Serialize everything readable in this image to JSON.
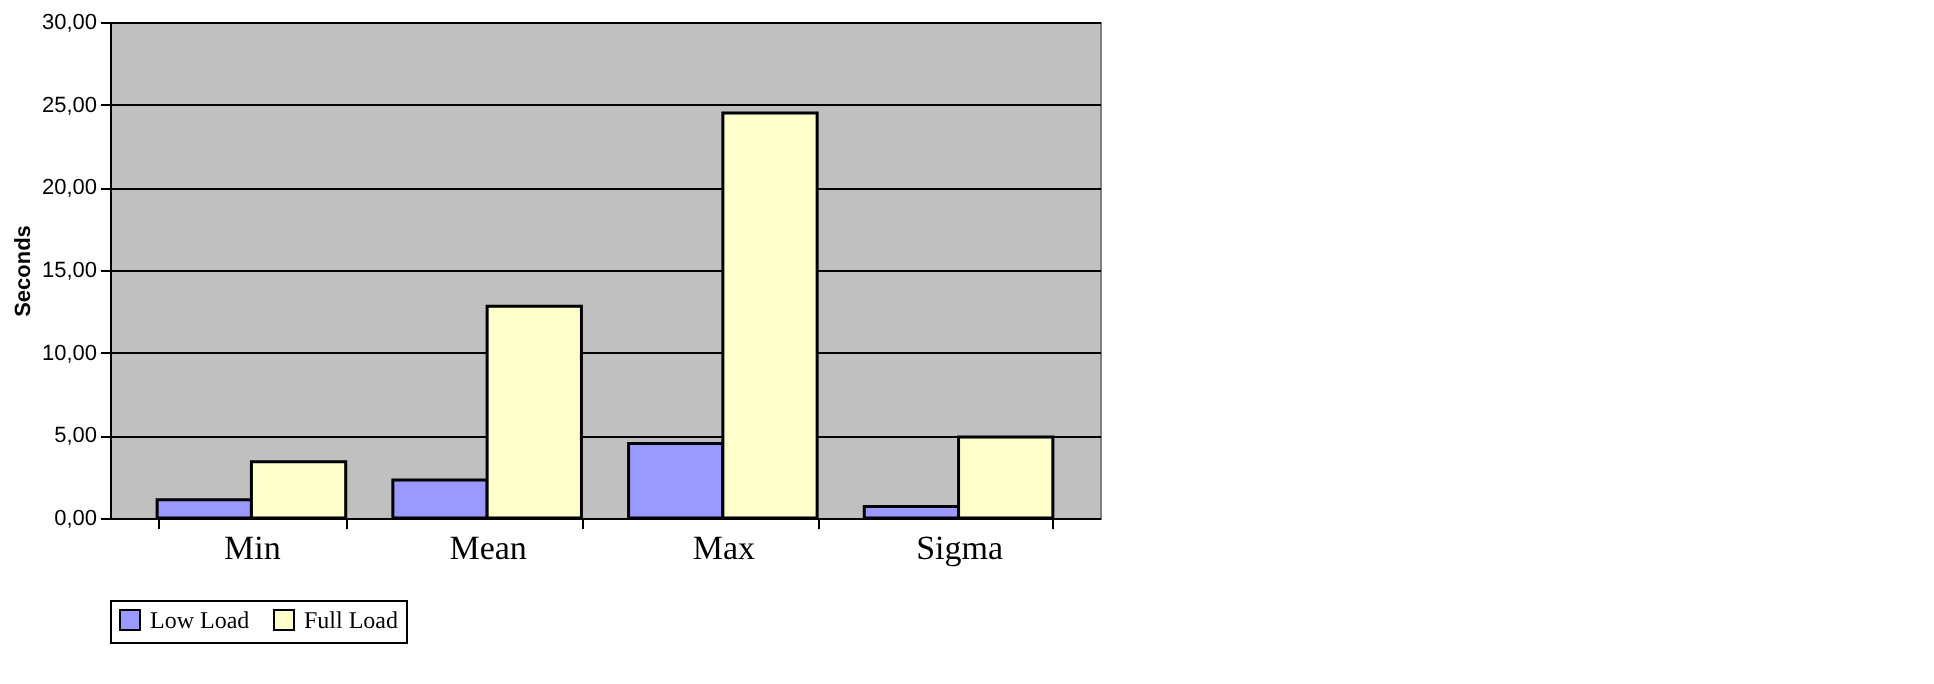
{
  "chart_data": {
    "type": "bar",
    "ylabel": "Seconds",
    "categories": [
      "Min",
      "Mean",
      "Max",
      "Sigma"
    ],
    "series": [
      {
        "name": "Low Load",
        "color": "#9999ff",
        "values": [
          1.1,
          2.3,
          4.5,
          0.7
        ]
      },
      {
        "name": "Full Load",
        "color": "#ffffcc",
        "values": [
          3.4,
          12.8,
          24.5,
          4.9
        ]
      }
    ],
    "ylim": [
      0,
      30
    ],
    "yticks": [
      {
        "value": 0,
        "label": "0,00"
      },
      {
        "value": 5,
        "label": "5,00"
      },
      {
        "value": 10,
        "label": "10,00"
      },
      {
        "value": 15,
        "label": "15,00"
      },
      {
        "value": 20,
        "label": "20,00"
      },
      {
        "value": 25,
        "label": "25,00"
      },
      {
        "value": 30,
        "label": "30,00"
      }
    ],
    "grid": "y",
    "legend": "bottom"
  }
}
